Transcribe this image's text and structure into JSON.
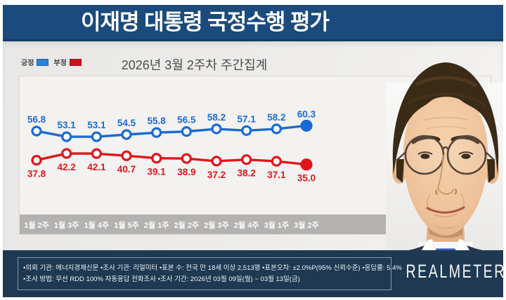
{
  "header": {
    "title": "이재명 대통령 국정수행 평가"
  },
  "legend": {
    "positive_label": "긍정",
    "negative_label": "부정"
  },
  "subtitle": "2026년 3월 2주차 주간집계",
  "chart_data": {
    "type": "line",
    "title": "2026년 3월 2주차 주간집계",
    "categories": [
      "1월 2주",
      "1월 3주",
      "1월 4주",
      "1월 5주",
      "2월 1주",
      "2월 2주",
      "2월 3주",
      "2월 4주",
      "3월 1주",
      "3월 2주"
    ],
    "series": [
      {
        "name": "긍정",
        "color": "#1a6ad4",
        "values": [
          56.8,
          53.1,
          53.1,
          54.5,
          55.8,
          56.5,
          58.2,
          57.1,
          58.2,
          60.3
        ]
      },
      {
        "name": "부정",
        "color": "#e0151c",
        "values": [
          37.8,
          42.2,
          42.1,
          40.7,
          39.1,
          38.9,
          37.2,
          38.2,
          37.1,
          35.0
        ]
      }
    ],
    "ylim": [
      30,
      65
    ],
    "grid": false,
    "legend_position": "top-left",
    "last_point_emphasized": true,
    "value_labels": "all"
  },
  "footer": {
    "line1": "•의뢰 기관: 에너지경제신문 •조사 기관: 리얼미터 •표본 수: 전국 만 18세 이상 2,513명 •표본오차: ±2.0%P(95% 신뢰수준) •응답률: 5.4%",
    "line2": "•조사 방법: 무선 RDD 100% 자동응답 전화조사 •조사 기간: 2026년 03월 09일(월) ~ 03월 13일(금)",
    "logo": "REALMETER"
  },
  "colors": {
    "header_bg": "#1b4a7c",
    "footer_bg": "#1e3951",
    "positive": "#1a6ad4",
    "negative": "#e0151c",
    "axis_band": "#b4b2b0",
    "plot_bg": "#f3f2f0",
    "panel_bg": "#eceae8"
  }
}
